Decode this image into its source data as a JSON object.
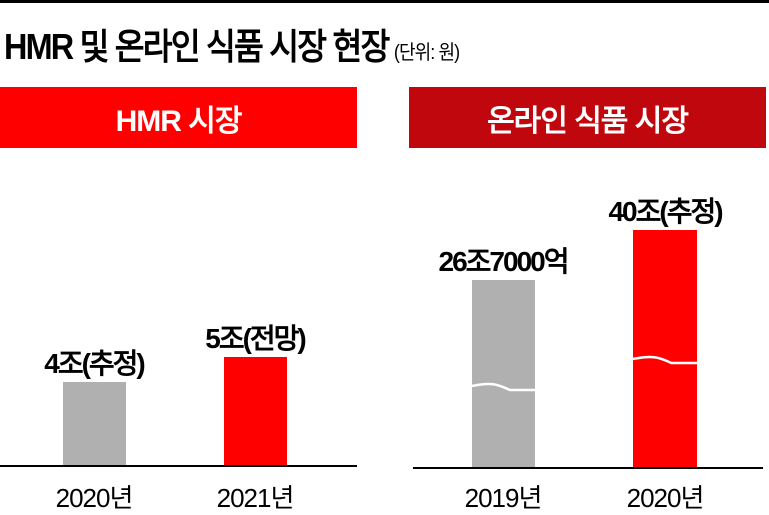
{
  "title": "HMR 및 온라인 식품 시장 현장",
  "unit": "(단위: 원)",
  "colors": {
    "highlight": "#ff0000",
    "header_dark": "#c0070d",
    "past": "#b0b0b0"
  },
  "chart_data": [
    {
      "type": "bar",
      "title": "HMR 시장",
      "categories": [
        "2020년",
        "2021년"
      ],
      "values": [
        4,
        5
      ],
      "value_unit": "조",
      "data_labels": [
        "4조(추정)",
        "5조(전망)"
      ],
      "bar_colors": [
        "#b0b0b0",
        "#ff0000"
      ],
      "axis_break": false
    },
    {
      "type": "bar",
      "title": "온라인 식품 시장",
      "categories": [
        "2019년",
        "2020년"
      ],
      "values": [
        26.7,
        40
      ],
      "value_unit": "조",
      "data_labels": [
        "26조7000억",
        "40조(추정)"
      ],
      "bar_colors": [
        "#b0b0b0",
        "#ff0000"
      ],
      "axis_break": true
    }
  ]
}
